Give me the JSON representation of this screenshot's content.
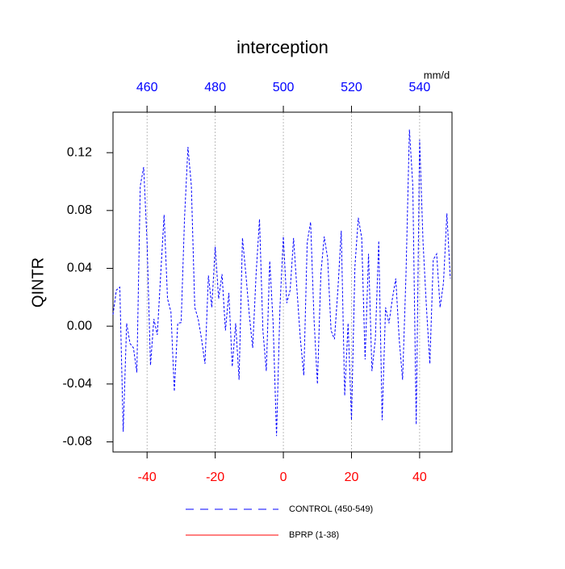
{
  "chart_data": {
    "type": "line",
    "title": "interception",
    "ylabel": "QINTR",
    "x2_unit_label": "mm/d",
    "x": [
      -50,
      -49,
      -48,
      -47,
      -46,
      -45,
      -44,
      -43,
      -42,
      -41,
      -40,
      -39,
      -38,
      -37,
      -36,
      -35,
      -34,
      -33,
      -32,
      -31,
      -30,
      -29,
      -28,
      -27,
      -26,
      -25,
      -24,
      -23,
      -22,
      -21,
      -20,
      -19,
      -18,
      -17,
      -16,
      -15,
      -14,
      -13,
      -12,
      -11,
      -10,
      -9,
      -8,
      -7,
      -6,
      -5,
      -4,
      -3,
      -2,
      -1,
      0,
      1,
      2,
      3,
      4,
      5,
      6,
      7,
      8,
      9,
      10,
      11,
      12,
      13,
      14,
      15,
      16,
      17,
      18,
      19,
      20,
      21,
      22,
      23,
      24,
      25,
      26,
      27,
      28,
      29,
      30,
      31,
      32,
      33,
      34,
      35,
      36,
      37,
      38,
      39,
      40,
      41,
      42,
      43,
      44,
      45,
      46,
      47,
      48,
      49
    ],
    "series": [
      {
        "name": "CONTROL (450-549)",
        "color": "#0000ff",
        "dashed": true,
        "values": [
          0.008,
          0.025,
          0.027,
          -0.073,
          0.002,
          -0.012,
          -0.015,
          -0.032,
          0.097,
          0.11,
          0.058,
          -0.027,
          0.005,
          -0.006,
          0.036,
          0.077,
          0.019,
          0.01,
          -0.045,
          0.002,
          0.0025,
          0.075,
          0.124,
          0.097,
          0.013,
          0.005,
          -0.009,
          -0.026,
          0.035,
          0.013,
          0.055,
          0.019,
          0.036,
          -0.003,
          0.023,
          -0.028,
          0.002,
          -0.037,
          0.061,
          0.036,
          0.008,
          -0.015,
          0.036,
          0.074,
          -0.003,
          -0.031,
          0.045,
          0.002,
          -0.076,
          0.013,
          0.062,
          0.016,
          0.025,
          0.061,
          0.025,
          -0.009,
          -0.034,
          0.058,
          0.072,
          0.005,
          -0.04,
          0.036,
          0.062,
          0.047,
          -0.003,
          -0.009,
          0.025,
          0.066,
          -0.048,
          0.002,
          -0.065,
          0.041,
          0.075,
          0.061,
          -0.023,
          0.05,
          -0.031,
          -0.009,
          0.059,
          -0.065,
          0.013,
          0.002,
          0.019,
          0.033,
          -0.009,
          -0.037,
          0.036,
          0.136,
          0.097,
          -0.068,
          0.129,
          0.058,
          0.013,
          -0.026,
          0.046,
          0.05,
          0.013,
          0.03,
          0.078,
          0.033
        ]
      },
      {
        "name": "BPRP (1-38)",
        "color": "#ff0000",
        "dashed": false,
        "values": [
          null,
          null,
          null,
          null,
          null,
          null,
          null,
          null,
          null,
          null,
          null,
          null,
          null,
          null,
          null,
          null,
          null,
          null,
          null,
          null,
          null,
          null,
          null,
          null,
          null,
          null,
          null,
          null,
          null,
          null,
          null,
          null,
          null,
          null,
          null,
          null,
          null,
          null,
          null,
          null,
          null,
          null,
          null,
          null,
          null,
          null,
          null,
          null,
          null,
          null,
          null,
          null,
          null,
          null,
          null,
          null,
          null,
          null,
          null,
          null,
          null,
          null,
          null,
          null,
          null,
          null,
          null,
          null,
          null,
          null,
          null,
          null,
          null,
          null,
          null,
          null,
          null,
          null,
          null,
          null,
          null,
          null,
          null,
          null,
          null,
          null,
          null,
          null,
          null,
          null,
          null,
          null,
          null,
          null,
          null,
          null,
          null,
          null,
          null,
          null
        ]
      }
    ],
    "xlim": [
      -50,
      49.5
    ],
    "xticks": [
      -40,
      -20,
      0,
      20,
      40
    ],
    "xtick_color": "#ff0000",
    "x2lim": [
      450,
      549.5
    ],
    "x2ticks": [
      460,
      480,
      500,
      520,
      540
    ],
    "x2tick_color": "#0000ff",
    "ylim": [
      -0.087,
      0.148
    ],
    "yticks": [
      -0.08,
      -0.04,
      {
        "value": 0,
        "label": "0.00"
      },
      0.04,
      0.08,
      0.12
    ],
    "grid": true
  }
}
